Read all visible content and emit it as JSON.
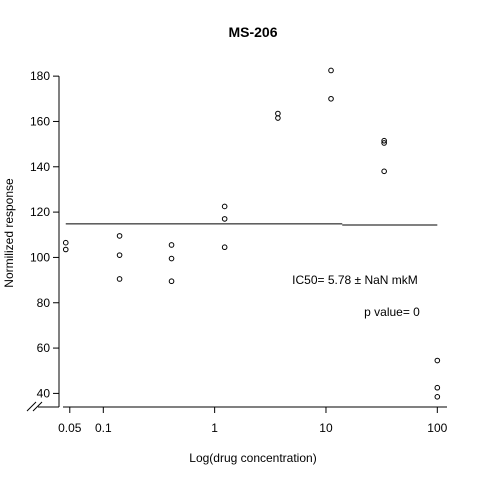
{
  "chart_data": {
    "type": "scatter",
    "title": "MS-206",
    "xlabel": "Log(drug concentration)",
    "ylabel": "Normilized response",
    "x_scale": "log10",
    "xlim": [
      0.04,
      130
    ],
    "ylim": [
      34,
      188
    ],
    "x_ticks": [
      {
        "value": 0.05,
        "label": "0.05"
      },
      {
        "value": 0.1,
        "label": "0.1"
      },
      {
        "value": 1,
        "label": "1"
      },
      {
        "value": 10,
        "label": "10"
      },
      {
        "value": 100,
        "label": "100"
      }
    ],
    "y_ticks": [
      {
        "value": 40,
        "label": "40"
      },
      {
        "value": 60,
        "label": "60"
      },
      {
        "value": 80,
        "label": "80"
      },
      {
        "value": 100,
        "label": "100"
      },
      {
        "value": 120,
        "label": "120"
      },
      {
        "value": 140,
        "label": "140"
      },
      {
        "value": 160,
        "label": "160"
      },
      {
        "value": 180,
        "label": "180"
      }
    ],
    "points": [
      {
        "x": 0.046,
        "y": 106.5
      },
      {
        "x": 0.046,
        "y": 103.5
      },
      {
        "x": 0.14,
        "y": 109.5
      },
      {
        "x": 0.14,
        "y": 101.0
      },
      {
        "x": 0.14,
        "y": 90.5
      },
      {
        "x": 0.41,
        "y": 105.5
      },
      {
        "x": 0.41,
        "y": 99.5
      },
      {
        "x": 0.41,
        "y": 89.5
      },
      {
        "x": 1.23,
        "y": 122.5
      },
      {
        "x": 1.23,
        "y": 117.0
      },
      {
        "x": 1.23,
        "y": 104.5
      },
      {
        "x": 3.7,
        "y": 163.5
      },
      {
        "x": 3.7,
        "y": 161.5
      },
      {
        "x": 11.1,
        "y": 182.5
      },
      {
        "x": 11.1,
        "y": 170.0
      },
      {
        "x": 33.3,
        "y": 151.5
      },
      {
        "x": 33.3,
        "y": 150.5
      },
      {
        "x": 33.3,
        "y": 138.0
      },
      {
        "x": 100,
        "y": 54.5
      },
      {
        "x": 100,
        "y": 42.5
      },
      {
        "x": 100,
        "y": 38.5
      }
    ],
    "fit_segments": [
      {
        "x": [
          0.046,
          14.0
        ],
        "y": [
          114.8,
          114.8
        ]
      },
      {
        "x": [
          14.0,
          100
        ],
        "y": [
          114.3,
          114.3
        ]
      }
    ],
    "annotations": [
      "IC50= 5.78 ± NaN mkM",
      "p value= 0"
    ],
    "axis_break": true,
    "grid": false,
    "legend": "none"
  }
}
